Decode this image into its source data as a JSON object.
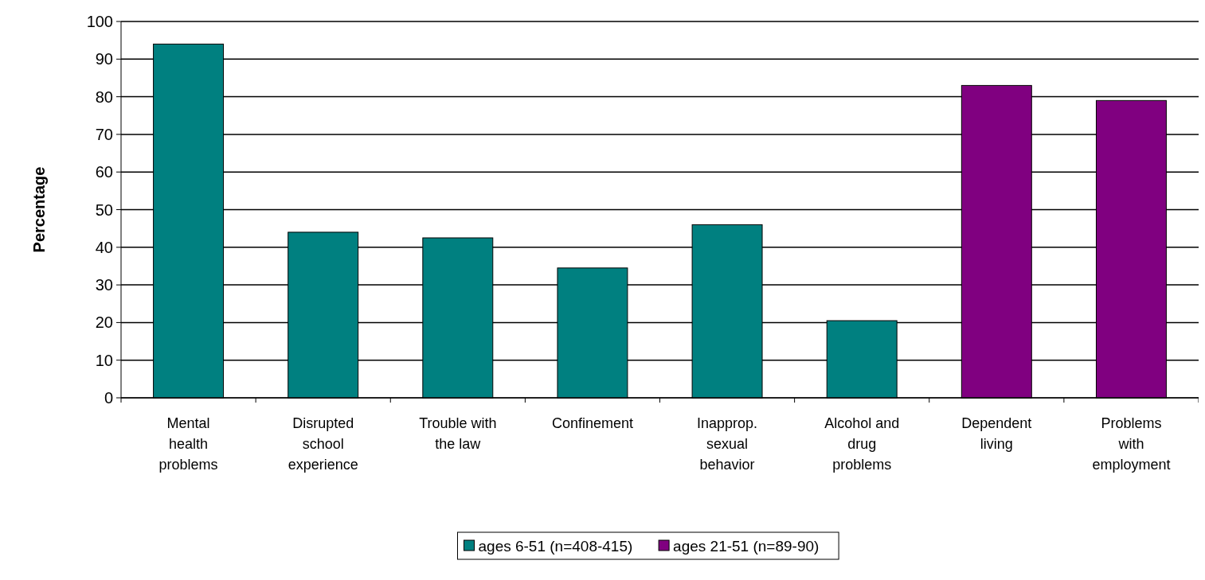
{
  "chart_data": {
    "type": "bar",
    "ylabel": "Percentage",
    "categories": [
      "Mental health problems",
      "Disrupted school experience",
      "Trouble with the law",
      "Confinement",
      "Inapprop. sexual behavior",
      "Alcohol and drug problems",
      "Dependent living",
      "Problems with employment"
    ],
    "series": [
      {
        "name": "ages 6-51 (n=408-415)",
        "color": "#008080",
        "values": [
          94,
          44,
          42.5,
          34.5,
          46,
          20.5,
          null,
          null
        ]
      },
      {
        "name": "ages 21-51 (n=89-90)",
        "color": "#800080",
        "values": [
          null,
          null,
          null,
          null,
          null,
          null,
          83,
          79
        ]
      }
    ],
    "ylim": [
      0,
      100
    ],
    "yticks": [
      0,
      10,
      20,
      30,
      40,
      50,
      60,
      70,
      80,
      90,
      100
    ],
    "grid": "y",
    "legend": "bottom"
  }
}
